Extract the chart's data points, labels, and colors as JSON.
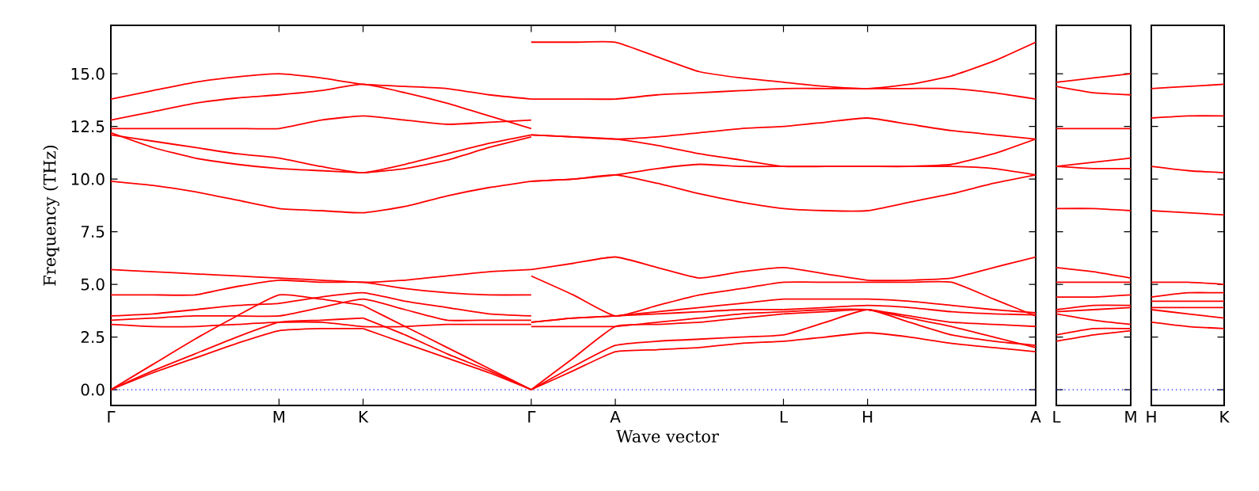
{
  "chart_data": [
    {
      "type": "line",
      "xlabel": "Wave vector",
      "ylabel": "Frequency (THz)",
      "ylim": [
        -0.75,
        17.3
      ],
      "categories": [
        "Γ",
        null,
        null,
        null,
        "M",
        null,
        "K",
        null,
        null,
        null,
        "Γ",
        null,
        "A",
        null,
        null,
        null,
        "L",
        null,
        "H",
        null,
        null,
        null,
        "A"
      ],
      "yticks": [
        {
          "value": 0,
          "label": "0.0"
        },
        {
          "value": 2.5,
          "label": "2.5"
        },
        {
          "value": 5,
          "label": "5.0"
        },
        {
          "value": 7.5,
          "label": "7.5"
        },
        {
          "value": 10,
          "label": "10.0"
        },
        {
          "value": 12.5,
          "label": "12.5"
        },
        {
          "value": 15,
          "label": "15.0"
        }
      ],
      "ref_lines": [
        {
          "axis": "y",
          "value": 0,
          "color": "#0000ff",
          "line_style": "dotted"
        }
      ],
      "series": [
        {
          "color": "#ff0000",
          "values": [
            13.8,
            14.2,
            14.6,
            14.85,
            15.0,
            14.8,
            14.5,
            14.4,
            14.3,
            14.0,
            13.8,
            null,
            null,
            null,
            null,
            null,
            null,
            null,
            null,
            null,
            null,
            null,
            null
          ]
        },
        {
          "color": "#ff0000",
          "values": [
            12.8,
            13.2,
            13.6,
            13.85,
            14.0,
            14.2,
            14.5,
            14.1,
            13.6,
            13.0,
            12.4,
            null,
            null,
            null,
            null,
            null,
            null,
            null,
            null,
            null,
            null,
            null,
            null
          ]
        },
        {
          "color": "#ff0000",
          "values": [
            12.4,
            12.4,
            12.4,
            12.4,
            12.4,
            12.8,
            13.0,
            12.8,
            12.6,
            12.7,
            12.8,
            null,
            null,
            null,
            null,
            null,
            null,
            null,
            null,
            null,
            null,
            null,
            null
          ]
        },
        {
          "color": "#ff0000",
          "values": [
            12.1,
            11.8,
            11.5,
            11.2,
            11.0,
            10.6,
            10.3,
            10.7,
            11.2,
            11.7,
            12.1,
            null,
            null,
            null,
            null,
            null,
            null,
            null,
            null,
            null,
            null,
            null,
            null
          ]
        },
        {
          "color": "#ff0000",
          "values": [
            12.2,
            11.5,
            11.0,
            10.7,
            10.5,
            10.4,
            10.3,
            null,
            null,
            null,
            null,
            null,
            null,
            null,
            null,
            null,
            null,
            null,
            null,
            null,
            null,
            null,
            null
          ]
        },
        {
          "color": "#ff0000",
          "values": [
            null,
            null,
            null,
            null,
            null,
            null,
            10.3,
            10.5,
            10.9,
            11.5,
            12.0,
            null,
            null,
            null,
            null,
            null,
            null,
            null,
            null,
            null,
            null,
            null,
            null
          ]
        },
        {
          "color": "#ff0000",
          "values": [
            9.9,
            9.7,
            9.4,
            9.0,
            8.6,
            8.5,
            8.4,
            8.7,
            9.2,
            9.6,
            9.9,
            null,
            null,
            null,
            null,
            null,
            null,
            null,
            null,
            null,
            null,
            null,
            null
          ]
        },
        {
          "color": "#ff0000",
          "values": [
            5.7,
            5.6,
            5.5,
            5.4,
            5.3,
            5.2,
            5.1,
            5.2,
            5.4,
            5.6,
            5.7,
            null,
            null,
            null,
            null,
            null,
            null,
            null,
            null,
            null,
            null,
            null,
            null
          ]
        },
        {
          "color": "#ff0000",
          "values": [
            4.5,
            4.5,
            4.5,
            4.9,
            5.2,
            5.1,
            5.1,
            4.8,
            4.6,
            4.5,
            4.5,
            null,
            null,
            null,
            null,
            null,
            null,
            null,
            null,
            null,
            null,
            null,
            null
          ]
        },
        {
          "color": "#ff0000",
          "values": [
            3.5,
            3.6,
            3.8,
            4.0,
            4.1,
            4.4,
            4.6,
            4.2,
            3.9,
            3.6,
            3.5,
            null,
            null,
            null,
            null,
            null,
            null,
            null,
            null,
            null,
            null,
            null,
            null
          ]
        },
        {
          "color": "#ff0000",
          "values": [
            3.3,
            3.4,
            3.5,
            3.5,
            3.5,
            3.9,
            4.3,
            3.8,
            3.3,
            3.3,
            3.3,
            null,
            null,
            null,
            null,
            null,
            null,
            null,
            null,
            null,
            null,
            null,
            null
          ]
        },
        {
          "color": "#ff0000",
          "values": [
            3.1,
            3.0,
            3.0,
            3.1,
            3.2,
            3.2,
            3.0,
            3.0,
            3.1,
            3.1,
            3.1,
            null,
            null,
            null,
            null,
            null,
            null,
            null,
            null,
            null,
            null,
            null,
            null
          ]
        },
        {
          "color": "#ff0000",
          "values": [
            0,
            1.2,
            2.4,
            3.5,
            4.5,
            4.3,
            4.0,
            null,
            null,
            null,
            null,
            null,
            null,
            null,
            null,
            null,
            null,
            null,
            null,
            null,
            null,
            null,
            null
          ]
        },
        {
          "color": "#ff0000",
          "values": [
            null,
            null,
            null,
            null,
            null,
            null,
            4.0,
            3.0,
            2.0,
            1.0,
            0,
            null,
            null,
            null,
            null,
            null,
            null,
            null,
            null,
            null,
            null,
            null,
            null
          ]
        },
        {
          "color": "#ff0000",
          "values": [
            0,
            0.9,
            1.7,
            2.5,
            3.2,
            3.3,
            3.4,
            null,
            null,
            null,
            null,
            null,
            null,
            null,
            null,
            null,
            null,
            null,
            null,
            null,
            null,
            null,
            null
          ]
        },
        {
          "color": "#ff0000",
          "values": [
            null,
            null,
            null,
            null,
            null,
            null,
            3.4,
            2.6,
            1.7,
            0.9,
            0,
            null,
            null,
            null,
            null,
            null,
            null,
            null,
            null,
            null,
            null,
            null,
            null
          ]
        },
        {
          "color": "#ff0000",
          "values": [
            0,
            0.8,
            1.5,
            2.2,
            2.8,
            2.9,
            2.9,
            null,
            null,
            null,
            null,
            null,
            null,
            null,
            null,
            null,
            null,
            null,
            null,
            null,
            null,
            null,
            null
          ]
        },
        {
          "color": "#ff0000",
          "values": [
            null,
            null,
            null,
            null,
            null,
            null,
            2.9,
            2.2,
            1.5,
            0.8,
            0,
            null,
            null,
            null,
            null,
            null,
            null,
            null,
            null,
            null,
            null,
            null,
            null
          ]
        },
        {
          "color": "#ff0000",
          "values": [
            null,
            null,
            null,
            null,
            null,
            null,
            null,
            null,
            null,
            null,
            16.5,
            16.5,
            16.5,
            15.8,
            15.1,
            14.8,
            14.6,
            14.4,
            14.3,
            14.5,
            14.9,
            15.6,
            16.5
          ]
        },
        {
          "color": "#ff0000",
          "values": [
            null,
            null,
            null,
            null,
            null,
            null,
            null,
            null,
            null,
            null,
            13.8,
            13.8,
            13.8,
            14.0,
            14.1,
            14.2,
            14.3,
            14.3,
            14.3,
            14.3,
            14.3,
            14.1,
            13.8
          ]
        },
        {
          "color": "#ff0000",
          "values": [
            null,
            null,
            null,
            null,
            null,
            null,
            null,
            null,
            null,
            null,
            12.1,
            12.0,
            11.9,
            12.0,
            12.2,
            12.4,
            12.5,
            12.7,
            12.9,
            12.6,
            12.3,
            12.1,
            11.9
          ]
        },
        {
          "color": "#ff0000",
          "values": [
            null,
            null,
            null,
            null,
            null,
            null,
            null,
            null,
            null,
            null,
            12.1,
            12.0,
            11.9,
            11.6,
            11.2,
            10.9,
            10.6,
            10.6,
            10.6,
            10.6,
            10.6,
            10.5,
            10.2
          ]
        },
        {
          "color": "#ff0000",
          "values": [
            null,
            null,
            null,
            null,
            null,
            null,
            null,
            null,
            null,
            null,
            9.9,
            10.0,
            10.2,
            10.5,
            10.7,
            10.6,
            10.6,
            10.6,
            10.6,
            10.6,
            10.7,
            11.2,
            11.9
          ]
        },
        {
          "color": "#ff0000",
          "values": [
            null,
            null,
            null,
            null,
            null,
            null,
            null,
            null,
            null,
            null,
            9.9,
            10.0,
            10.2,
            9.8,
            9.3,
            8.9,
            8.6,
            8.5,
            8.5,
            8.9,
            9.3,
            9.8,
            10.2
          ]
        },
        {
          "color": "#ff0000",
          "values": [
            null,
            null,
            null,
            null,
            null,
            null,
            null,
            null,
            null,
            null,
            5.7,
            6.0,
            6.3,
            5.8,
            5.3,
            5.6,
            5.8,
            5.5,
            5.2,
            5.2,
            5.3,
            5.8,
            6.3
          ]
        },
        {
          "color": "#ff0000",
          "values": [
            null,
            null,
            null,
            null,
            null,
            null,
            null,
            null,
            null,
            null,
            5.4,
            4.5,
            3.5,
            4.0,
            4.5,
            4.8,
            5.1,
            5.1,
            5.1,
            5.1,
            5.1,
            4.3,
            3.5
          ]
        },
        {
          "color": "#ff0000",
          "values": [
            null,
            null,
            null,
            null,
            null,
            null,
            null,
            null,
            null,
            null,
            3.2,
            3.4,
            3.5,
            3.7,
            3.9,
            4.1,
            4.3,
            4.3,
            4.3,
            4.2,
            4.0,
            3.8,
            3.65
          ]
        },
        {
          "color": "#ff0000",
          "values": [
            null,
            null,
            null,
            null,
            null,
            null,
            null,
            null,
            null,
            null,
            3.2,
            3.4,
            3.5,
            3.6,
            3.7,
            3.8,
            3.8,
            null,
            null,
            null,
            null,
            null,
            null
          ]
        },
        {
          "color": "#ff0000",
          "values": [
            null,
            null,
            null,
            null,
            null,
            null,
            null,
            null,
            null,
            null,
            null,
            null,
            null,
            null,
            null,
            null,
            3.8,
            3.9,
            4.0,
            3.9,
            3.7,
            3.6,
            3.55
          ]
        },
        {
          "color": "#ff0000",
          "values": [
            null,
            null,
            null,
            null,
            null,
            null,
            null,
            null,
            null,
            null,
            3.0,
            3.0,
            3.0,
            3.2,
            3.4,
            3.6,
            3.7,
            3.8,
            3.8,
            3.5,
            3.2,
            3.1,
            3.0
          ]
        },
        {
          "color": "#ff0000",
          "values": [
            null,
            null,
            null,
            null,
            null,
            null,
            null,
            null,
            null,
            null,
            0,
            1.1,
            2.1,
            2.3,
            2.4,
            2.5,
            2.6,
            3.2,
            3.8,
            3.2,
            2.6,
            2.3,
            2.1
          ]
        },
        {
          "color": "#ff0000",
          "values": [
            null,
            null,
            null,
            null,
            null,
            null,
            null,
            null,
            null,
            null,
            0,
            0.9,
            1.8,
            1.9,
            2.0,
            2.2,
            2.3,
            2.5,
            2.7,
            2.5,
            2.2,
            2.0,
            1.8
          ]
        },
        {
          "color": "#ff0000",
          "values": [
            null,
            null,
            null,
            null,
            null,
            null,
            null,
            null,
            null,
            null,
            0,
            1.5,
            3.0,
            3.1,
            3.2,
            3.4,
            3.6,
            null,
            null,
            null,
            null,
            null,
            null
          ]
        },
        {
          "color": "#ff0000",
          "values": [
            null,
            null,
            null,
            null,
            null,
            null,
            null,
            null,
            null,
            null,
            null,
            null,
            null,
            null,
            null,
            null,
            3.6,
            3.7,
            3.8,
            3.4,
            3.0,
            2.5,
            2.0
          ]
        }
      ]
    },
    {
      "type": "line",
      "ylim": [
        -0.75,
        17.3
      ],
      "tick_labels": "x",
      "categories": [
        "L",
        null,
        "M"
      ],
      "yticks": [
        {
          "value": 0,
          "label": null
        },
        {
          "value": 2.5,
          "label": null
        },
        {
          "value": 5,
          "label": null
        },
        {
          "value": 7.5,
          "label": null
        },
        {
          "value": 10,
          "label": null
        },
        {
          "value": 12.5,
          "label": null
        },
        {
          "value": 15,
          "label": null
        }
      ],
      "ref_lines": [
        {
          "axis": "y",
          "value": 0,
          "color": "#0000ff",
          "line_style": "dotted"
        }
      ],
      "series": [
        {
          "color": "#ff0000",
          "values": [
            14.6,
            14.8,
            15.0
          ]
        },
        {
          "color": "#ff0000",
          "values": [
            14.4,
            14.1,
            14.0
          ]
        },
        {
          "color": "#ff0000",
          "values": [
            12.4,
            12.4,
            12.4
          ]
        },
        {
          "color": "#ff0000",
          "values": [
            10.6,
            10.8,
            11.0
          ]
        },
        {
          "color": "#ff0000",
          "values": [
            10.6,
            10.5,
            10.5
          ]
        },
        {
          "color": "#ff0000",
          "values": [
            8.6,
            8.6,
            8.5
          ]
        },
        {
          "color": "#ff0000",
          "values": [
            5.8,
            5.6,
            5.3
          ]
        },
        {
          "color": "#ff0000",
          "values": [
            5.1,
            5.1,
            5.1
          ]
        },
        {
          "color": "#ff0000",
          "values": [
            4.4,
            4.4,
            4.5
          ]
        },
        {
          "color": "#ff0000",
          "values": [
            3.8,
            4.0,
            4.0
          ]
        },
        {
          "color": "#ff0000",
          "values": [
            3.7,
            3.8,
            null
          ]
        },
        {
          "color": "#ff0000",
          "values": [
            null,
            3.8,
            3.9
          ]
        },
        {
          "color": "#ff0000",
          "values": [
            3.6,
            3.3,
            3.1
          ]
        },
        {
          "color": "#ff0000",
          "values": [
            2.6,
            2.9,
            2.9
          ]
        },
        {
          "color": "#ff0000",
          "values": [
            2.3,
            2.6,
            2.8
          ]
        }
      ]
    },
    {
      "type": "line",
      "ylim": [
        -0.75,
        17.3
      ],
      "tick_labels": "x",
      "categories": [
        "H",
        null,
        "K"
      ],
      "yticks": [
        {
          "value": 0,
          "label": null
        },
        {
          "value": 2.5,
          "label": null
        },
        {
          "value": 5,
          "label": null
        },
        {
          "value": 7.5,
          "label": null
        },
        {
          "value": 10,
          "label": null
        },
        {
          "value": 12.5,
          "label": null
        },
        {
          "value": 15,
          "label": null
        }
      ],
      "ref_lines": [
        {
          "axis": "y",
          "value": 0,
          "color": "#0000ff",
          "line_style": "dotted"
        }
      ],
      "series": [
        {
          "color": "#ff0000",
          "values": [
            14.3,
            14.4,
            14.5
          ]
        },
        {
          "color": "#ff0000",
          "values": [
            12.9,
            13.0,
            13.0
          ]
        },
        {
          "color": "#ff0000",
          "values": [
            10.6,
            10.4,
            10.3
          ]
        },
        {
          "color": "#ff0000",
          "values": [
            8.5,
            8.4,
            8.3
          ]
        },
        {
          "color": "#ff0000",
          "values": [
            5.1,
            5.1,
            5.0
          ]
        },
        {
          "color": "#ff0000",
          "values": [
            4.4,
            4.6,
            4.6
          ]
        },
        {
          "color": "#ff0000",
          "values": [
            4.2,
            4.2,
            4.2
          ]
        },
        {
          "color": "#ff0000",
          "values": [
            3.9,
            3.9,
            3.9
          ]
        },
        {
          "color": "#ff0000",
          "values": [
            3.8,
            3.6,
            3.4
          ]
        },
        {
          "color": "#ff0000",
          "values": [
            3.2,
            3.0,
            2.9
          ]
        }
      ]
    }
  ]
}
